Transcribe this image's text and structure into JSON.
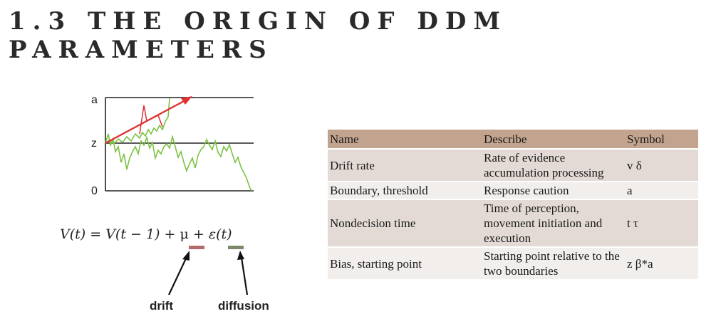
{
  "slide": {
    "title_line1": "1.3 THE ORIGIN OF DDM",
    "title_line2": "PARAMETERS"
  },
  "diagram": {
    "label_a": "a",
    "label_z": "z",
    "label_zero": "0"
  },
  "equation": {
    "lhs": "V(t)",
    "equals": "=",
    "prev": "V(t − 1)",
    "plus1": "+",
    "mu": "μ",
    "plus2": "+",
    "noise": "ε(t)"
  },
  "callouts": {
    "drift": "drift",
    "diffusion": "diffusion"
  },
  "table": {
    "headers": [
      "Name",
      "Describe",
      "Symbol"
    ],
    "rows": [
      {
        "name": "Drift rate",
        "describe": "Rate of evidence accumulation processing",
        "symbol": "v  δ"
      },
      {
        "name": "Boundary, threshold",
        "describe": "Response caution",
        "symbol": "a"
      },
      {
        "name": "Nondecision time",
        "describe": "Time of perception, movement initiation and execution",
        "symbol": "t  τ"
      },
      {
        "name": "Bias, starting point",
        "describe": "Starting point relative to the two boundaries",
        "symbol": "z  β*a"
      }
    ]
  },
  "colors": {
    "header_bg": "#c2a48e",
    "drift_arrow": "#e03030",
    "diffusion_path": "#7cc242",
    "drift_bar": "#b56a6a",
    "diffusion_bar": "#7c8a6a"
  }
}
